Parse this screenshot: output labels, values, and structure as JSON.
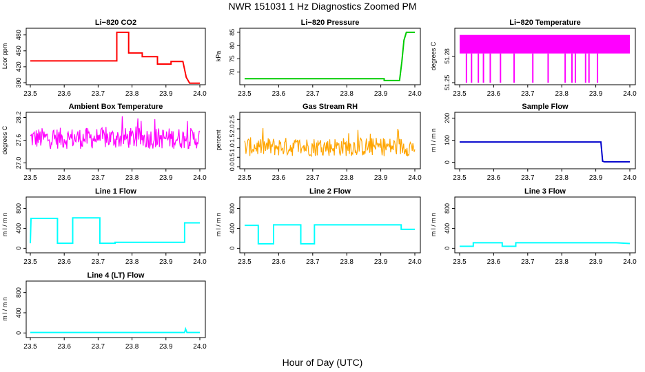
{
  "title": "NWR  151031  1 Hz Diagnostics Zoomed PM",
  "xlabel": "Hour of Day (UTC)",
  "chart_data": [
    {
      "type": "line",
      "title": "Li−820 CO2",
      "xlabel": "",
      "ylabel": "Lcor ppm",
      "xlim": [
        23.5,
        24.0
      ],
      "ylim": [
        390,
        490
      ],
      "x_ticks": [
        "23.5",
        "23.6",
        "23.7",
        "23.8",
        "23.9",
        "24.0"
      ],
      "y_ticks": [
        "390",
        "420",
        "450",
        "480"
      ],
      "color": "#ff0000",
      "series": [
        {
          "x": [
            23.5,
            23.755,
            23.755,
            23.79,
            23.79,
            23.83,
            23.83,
            23.875,
            23.875,
            23.915,
            23.915,
            23.95,
            23.96,
            23.97,
            24.0
          ],
          "y": [
            431,
            431,
            485,
            485,
            446,
            446,
            439,
            439,
            425,
            425,
            430,
            430,
            400,
            389,
            389
          ]
        }
      ]
    },
    {
      "type": "line",
      "title": "Li−820 Pressure",
      "xlabel": "",
      "ylabel": "kPa",
      "xlim": [
        23.5,
        24.0
      ],
      "ylim": [
        66,
        86
      ],
      "x_ticks": [
        "23.5",
        "23.6",
        "23.7",
        "23.8",
        "23.9",
        "24.0"
      ],
      "y_ticks": [
        "70",
        "75",
        "80",
        "85"
      ],
      "color": "#00cc00",
      "series": [
        {
          "x": [
            23.5,
            23.91,
            23.91,
            23.955,
            23.962,
            23.968,
            23.975,
            24.0
          ],
          "y": [
            67.5,
            67.5,
            66.8,
            66.8,
            74,
            82,
            85,
            85
          ]
        }
      ]
    },
    {
      "type": "line",
      "title": "Li−820 Temperature",
      "xlabel": "",
      "ylabel": "degrees C",
      "xlim": [
        23.5,
        24.0
      ],
      "ylim": [
        51.25,
        51.31
      ],
      "x_ticks": [
        "23.5",
        "23.6",
        "23.7",
        "23.8",
        "23.9",
        "24.0"
      ],
      "y_ticks": [
        "51.25",
        "51.28"
      ],
      "color": "#ff00ff",
      "series": [
        {
          "band_low": 51.283,
          "band_high": 51.304,
          "spike_low": 51.25,
          "spike_x": [
            23.52,
            23.535,
            23.555,
            23.57,
            23.59,
            23.62,
            23.66,
            23.715,
            23.76,
            23.81,
            23.83,
            23.84,
            23.87,
            23.88,
            23.905
          ]
        }
      ]
    },
    {
      "type": "line",
      "title": "Ambient Box Temperature",
      "xlabel": "",
      "ylabel": "degrees C",
      "xlim": [
        23.5,
        24.0
      ],
      "ylim": [
        26.9,
        28.3
      ],
      "x_ticks": [
        "23.5",
        "23.6",
        "23.7",
        "23.8",
        "23.9",
        "24.0"
      ],
      "y_ticks": [
        "27.0",
        "27.6",
        "28.2"
      ],
      "color": "#ff00ff",
      "series": [
        {
          "mean": 27.65,
          "noise": 0.28
        }
      ]
    },
    {
      "type": "line",
      "title": "Gas Stream RH",
      "xlabel": "",
      "ylabel": "percent",
      "xlim": [
        23.5,
        24.0
      ],
      "ylim": [
        0,
        2.8
      ],
      "x_ticks": [
        "23.5",
        "23.6",
        "23.7",
        "23.8",
        "23.9",
        "24.0"
      ],
      "y_ticks": [
        "0.0",
        "0.5",
        "1.0",
        "1.5",
        "2.0",
        "2.5"
      ],
      "color": "#ffa500",
      "series": [
        {
          "mean": 1.05,
          "noise": 0.5
        }
      ]
    },
    {
      "type": "line",
      "title": "Sample Flow",
      "xlabel": "",
      "ylabel": "m l / m n",
      "xlim": [
        23.5,
        24.0
      ],
      "ylim": [
        -20,
        220
      ],
      "x_ticks": [
        "23.5",
        "23.6",
        "23.7",
        "23.8",
        "23.9",
        "24.0"
      ],
      "y_ticks": [
        "0",
        "100",
        "200"
      ],
      "color": "#0000cc",
      "series": [
        {
          "x": [
            23.5,
            23.915,
            23.92,
            23.925,
            24.0
          ],
          "y": [
            92,
            92,
            5,
            2,
            2
          ]
        }
      ]
    },
    {
      "type": "line",
      "title": "Line 1 Flow",
      "xlabel": "",
      "ylabel": "m l / m n",
      "xlim": [
        23.5,
        24.0
      ],
      "ylim": [
        -50,
        1000
      ],
      "x_ticks": [
        "23.5",
        "23.6",
        "23.7",
        "23.8",
        "23.9",
        "24.0"
      ],
      "y_ticks": [
        "0",
        "400",
        "800"
      ],
      "color": "#00ffff",
      "series": [
        {
          "x": [
            23.5,
            23.502,
            23.58,
            23.58,
            23.625,
            23.625,
            23.705,
            23.705,
            23.75,
            23.75,
            23.955,
            23.955,
            24.0
          ],
          "y": [
            100,
            600,
            600,
            100,
            100,
            610,
            610,
            100,
            100,
            120,
            120,
            510,
            510
          ]
        }
      ]
    },
    {
      "type": "line",
      "title": "Line 2 Flow",
      "xlabel": "",
      "ylabel": "m l / m n",
      "xlim": [
        23.5,
        24.0
      ],
      "ylim": [
        -50,
        1000
      ],
      "x_ticks": [
        "23.5",
        "23.6",
        "23.7",
        "23.8",
        "23.9",
        "24.0"
      ],
      "y_ticks": [
        "0",
        "400",
        "800"
      ],
      "color": "#00ffff",
      "series": [
        {
          "x": [
            23.5,
            23.54,
            23.54,
            23.585,
            23.585,
            23.665,
            23.665,
            23.705,
            23.705,
            23.96,
            23.96,
            24.0
          ],
          "y": [
            460,
            460,
            90,
            90,
            470,
            470,
            90,
            90,
            470,
            470,
            380,
            380
          ]
        }
      ]
    },
    {
      "type": "line",
      "title": "Line 3 Flow",
      "xlabel": "",
      "ylabel": "m l / m n",
      "xlim": [
        23.5,
        24.0
      ],
      "ylim": [
        -50,
        1000
      ],
      "x_ticks": [
        "23.5",
        "23.6",
        "23.7",
        "23.8",
        "23.9",
        "24.0"
      ],
      "y_ticks": [
        "0",
        "400",
        "800"
      ],
      "color": "#00ffff",
      "series": [
        {
          "x": [
            23.5,
            23.54,
            23.54,
            23.625,
            23.625,
            23.665,
            23.665,
            23.96,
            24.0
          ],
          "y": [
            40,
            40,
            110,
            110,
            40,
            40,
            110,
            110,
            95
          ]
        }
      ]
    },
    {
      "type": "line",
      "title": "Line 4 (LT) Flow",
      "xlabel": "",
      "ylabel": "m l / m n",
      "xlim": [
        23.5,
        24.0
      ],
      "ylim": [
        -50,
        1000
      ],
      "x_ticks": [
        "23.5",
        "23.6",
        "23.7",
        "23.8",
        "23.9",
        "24.0"
      ],
      "y_ticks": [
        "0",
        "400",
        "800"
      ],
      "color": "#00ffff",
      "series": [
        {
          "x": [
            23.5,
            23.955,
            23.958,
            23.962,
            24.0
          ],
          "y": [
            10,
            10,
            80,
            10,
            10
          ]
        }
      ]
    }
  ]
}
